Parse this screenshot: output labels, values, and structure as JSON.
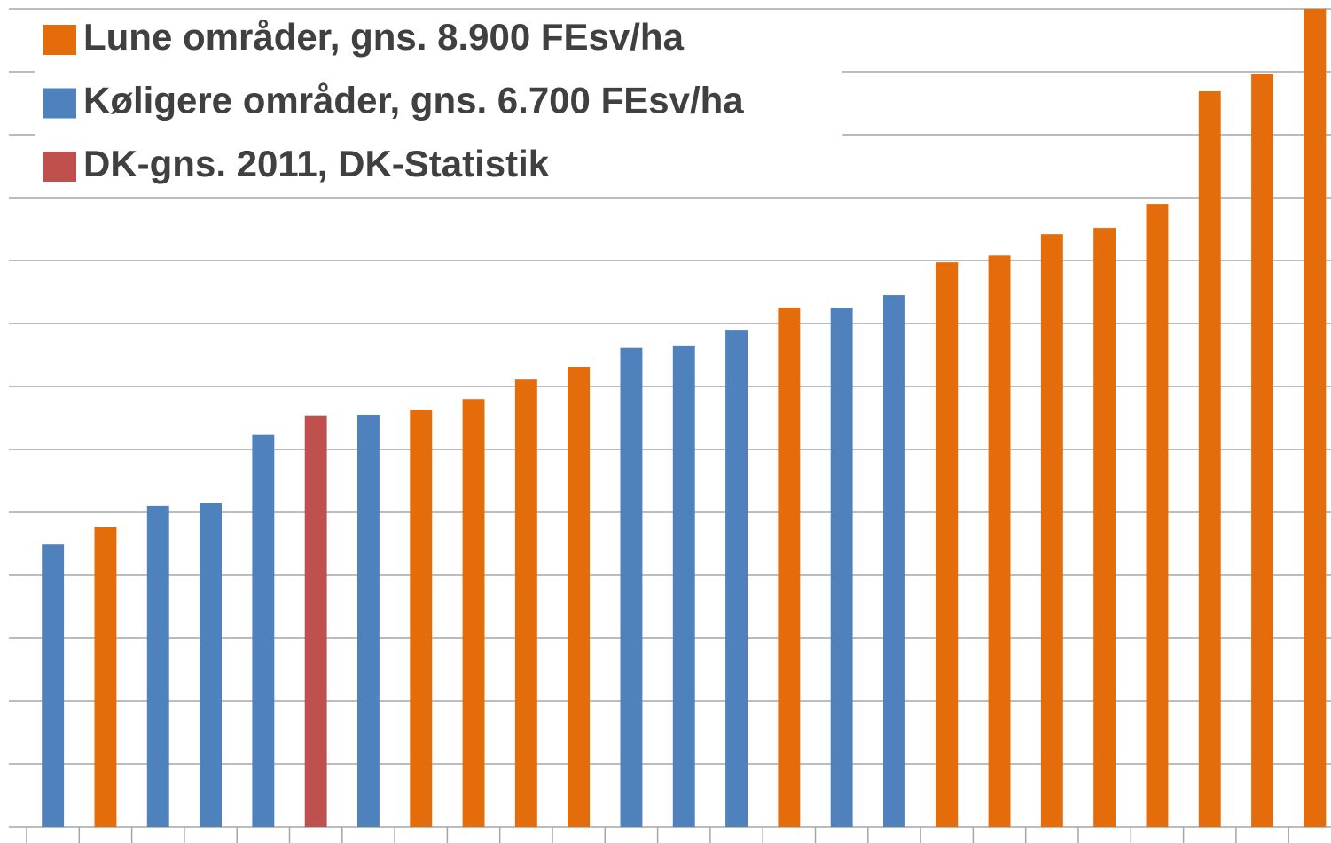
{
  "chart_data": {
    "type": "bar",
    "categories": [
      null,
      null,
      null,
      null,
      null,
      null,
      null,
      null,
      null,
      null,
      null,
      null,
      null,
      null,
      null,
      null,
      null,
      null,
      null,
      null,
      null,
      null,
      null,
      null,
      null
    ],
    "series": [
      {
        "name": "Lune områder, gns. 8.900 FEsv/ha",
        "color": "#e46c0a",
        "values": [
          null,
          4770,
          null,
          null,
          null,
          null,
          null,
          6630,
          6800,
          7110,
          7310,
          null,
          null,
          null,
          8250,
          null,
          null,
          8970,
          9080,
          9420,
          9520,
          9900,
          11690,
          11960,
          13000
        ]
      },
      {
        "name": "Køligere områder, gns. 6.700 FEsv/ha",
        "color": "#4f81bd",
        "values": [
          4490,
          null,
          5100,
          5150,
          6230,
          null,
          6550,
          null,
          null,
          null,
          null,
          7610,
          7650,
          7900,
          null,
          8250,
          8450,
          null,
          null,
          null,
          null,
          null,
          null,
          null,
          null
        ]
      },
      {
        "name": "DK-gns. 2011, DK-Statistik",
        "color": "#c0504d",
        "values": [
          null,
          null,
          null,
          null,
          null,
          6540,
          null,
          null,
          null,
          null,
          null,
          null,
          null,
          null,
          null,
          null,
          null,
          null,
          null,
          null,
          null,
          null,
          null,
          null,
          null
        ]
      }
    ],
    "ylim": [
      0,
      13000
    ],
    "yticks": [
      0,
      1000,
      2000,
      3000,
      4000,
      5000,
      6000,
      7000,
      8000,
      9000,
      10000,
      11000,
      12000,
      13000
    ],
    "grid": true,
    "legend": "top-left"
  }
}
